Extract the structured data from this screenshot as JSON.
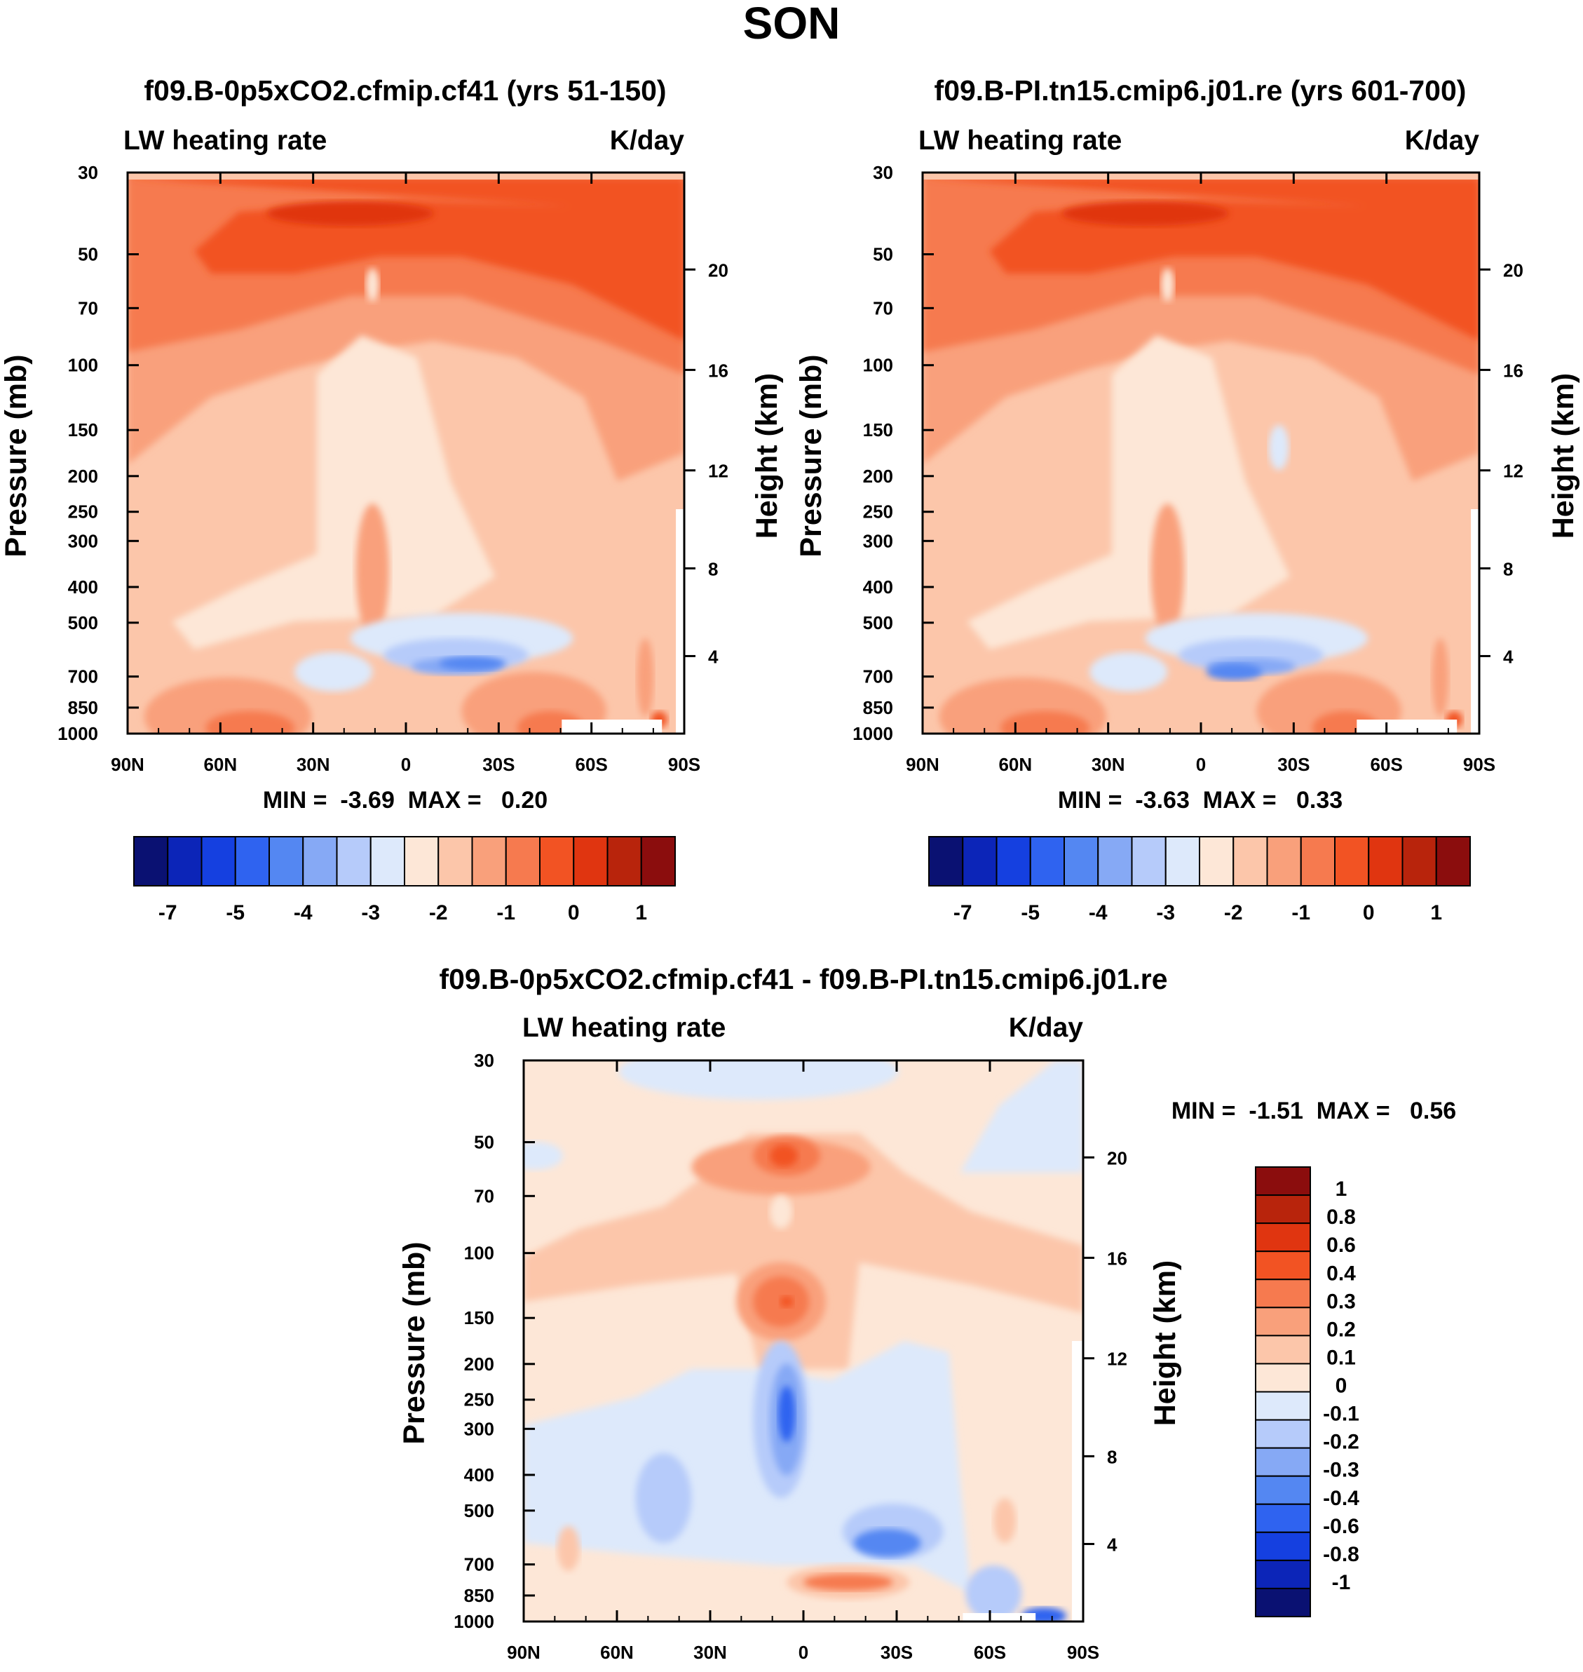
{
  "figure_title": "SON",
  "chart_data": [
    {
      "type": "heatmap",
      "title": "f09.B-0p5xCO2.cfmip.cf41 (yrs 51-150)",
      "left_subtitle": "LW heating rate",
      "right_subtitle": "K/day",
      "ylabel": "Pressure (mb)",
      "ylabel_right": "Height (km)",
      "x_ticks": [
        "90N",
        "60N",
        "30N",
        "0",
        "30S",
        "60S",
        "90S"
      ],
      "y_ticks": [
        "30",
        "50",
        "70",
        "100",
        "150",
        "200",
        "250",
        "300",
        "400",
        "500",
        "700",
        "850",
        "1000"
      ],
      "height_ticks": [
        "20",
        "16",
        "12",
        "8",
        "4"
      ],
      "ylim": [
        1000,
        30
      ],
      "min_max_text": "MIN =  -3.69  MAX =   0.20",
      "min": -3.69,
      "max": 0.2,
      "colorbar_labels": [
        "-7",
        "-5",
        "-4",
        "-3",
        "-2",
        "-1",
        "0",
        "1"
      ],
      "colorbar_colors": [
        "#0a1172",
        "#0c25b8",
        "#1540e0",
        "#2f63f0",
        "#5487f2",
        "#86a9f5",
        "#b6cbfa",
        "#dde9fb",
        "#fde7d7",
        "#fcc6aa",
        "#f9a07b",
        "#f67a4f",
        "#f25323",
        "#e03510",
        "#b8240c",
        "#8b0d0d"
      ]
    },
    {
      "type": "heatmap",
      "title": "f09.B-PI.tn15.cmip6.j01.re (yrs 601-700)",
      "left_subtitle": "LW heating rate",
      "right_subtitle": "K/day",
      "ylabel": "Pressure (mb)",
      "ylabel_right": "Height (km)",
      "x_ticks": [
        "90N",
        "60N",
        "30N",
        "0",
        "30S",
        "60S",
        "90S"
      ],
      "y_ticks": [
        "30",
        "50",
        "70",
        "100",
        "150",
        "200",
        "250",
        "300",
        "400",
        "500",
        "700",
        "850",
        "1000"
      ],
      "height_ticks": [
        "20",
        "16",
        "12",
        "8",
        "4"
      ],
      "ylim": [
        1000,
        30
      ],
      "min_max_text": "MIN =  -3.63  MAX =   0.33",
      "min": -3.63,
      "max": 0.33,
      "colorbar_labels": [
        "-7",
        "-5",
        "-4",
        "-3",
        "-2",
        "-1",
        "0",
        "1"
      ],
      "colorbar_colors": [
        "#0a1172",
        "#0c25b8",
        "#1540e0",
        "#2f63f0",
        "#5487f2",
        "#86a9f5",
        "#b6cbfa",
        "#dde9fb",
        "#fde7d7",
        "#fcc6aa",
        "#f9a07b",
        "#f67a4f",
        "#f25323",
        "#e03510",
        "#b8240c",
        "#8b0d0d"
      ]
    },
    {
      "type": "heatmap",
      "title": "f09.B-0p5xCO2.cfmip.cf41 - f09.B-PI.tn15.cmip6.j01.re",
      "left_subtitle": "LW heating rate",
      "right_subtitle": "K/day",
      "ylabel": "Pressure (mb)",
      "ylabel_right": "Height (km)",
      "x_ticks": [
        "90N",
        "60N",
        "30N",
        "0",
        "30S",
        "60S",
        "90S"
      ],
      "y_ticks": [
        "30",
        "50",
        "70",
        "100",
        "150",
        "200",
        "250",
        "300",
        "400",
        "500",
        "700",
        "850",
        "1000"
      ],
      "height_ticks": [
        "20",
        "16",
        "12",
        "8",
        "4"
      ],
      "ylim": [
        1000,
        30
      ],
      "min_max_text": "MIN =  -1.51  MAX =   0.56",
      "min": -1.51,
      "max": 0.56,
      "colorbar_labels": [
        "1",
        "0.8",
        "0.6",
        "0.4",
        "0.3",
        "0.2",
        "0.1",
        "0",
        "-0.1",
        "-0.2",
        "-0.3",
        "-0.4",
        "-0.6",
        "-0.8",
        "-1"
      ],
      "colorbar_colors": [
        "#8b0d0d",
        "#b8240c",
        "#e03510",
        "#f25323",
        "#f67a4f",
        "#f9a07b",
        "#fcc6aa",
        "#fde7d7",
        "#dde9fb",
        "#b6cbfa",
        "#86a9f5",
        "#5487f2",
        "#2f63f0",
        "#1540e0",
        "#0c25b8",
        "#0a1172"
      ]
    }
  ]
}
